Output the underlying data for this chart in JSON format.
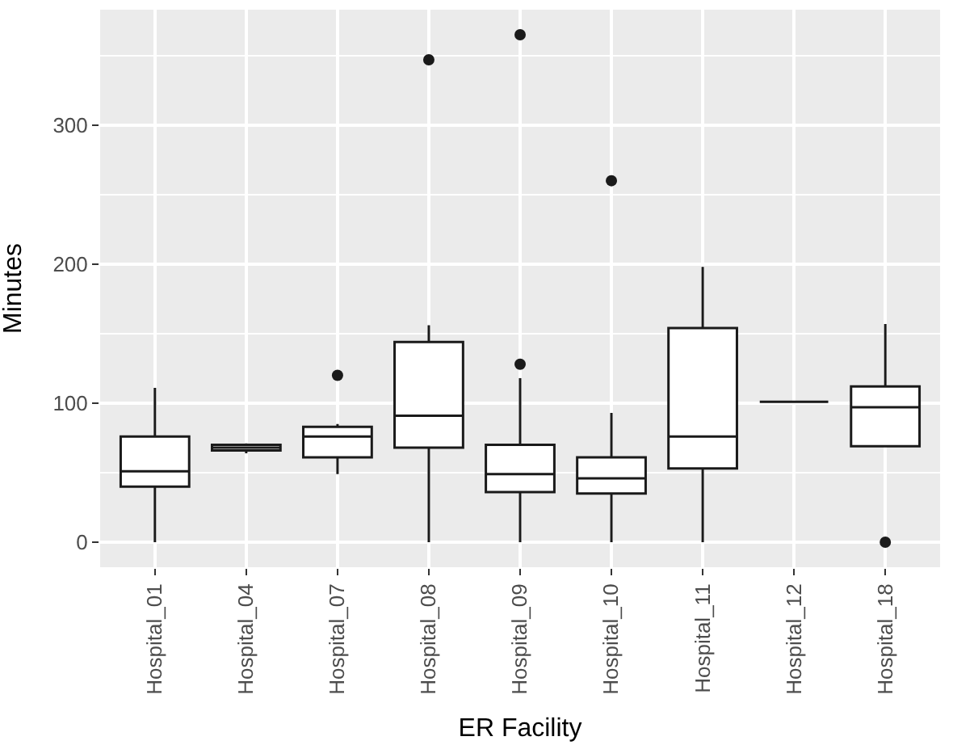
{
  "chart_data": {
    "type": "box",
    "xlabel": "ER Facility",
    "ylabel": "Minutes",
    "categories": [
      "Hospital_01",
      "Hospital_04",
      "Hospital_07",
      "Hospital_08",
      "Hospital_09",
      "Hospital_10",
      "Hospital_11",
      "Hospital_12",
      "Hospital_18"
    ],
    "boxes": [
      {
        "low": 0,
        "q1": 40,
        "median": 51,
        "q3": 76,
        "high": 111
      },
      {
        "low": 64,
        "q1": 66,
        "median": 68,
        "q3": 70,
        "high": 71
      },
      {
        "low": 49,
        "q1": 61,
        "median": 76,
        "q3": 83,
        "high": 85,
        "outliers": [
          120
        ]
      },
      {
        "low": 0,
        "q1": 68,
        "median": 91,
        "q3": 144,
        "high": 156,
        "outliers": [
          347
        ]
      },
      {
        "low": 0,
        "q1": 36,
        "median": 49,
        "q3": 70,
        "high": 118,
        "outliers": [
          128,
          365
        ]
      },
      {
        "low": 0,
        "q1": 35,
        "median": 46,
        "q3": 61,
        "high": 93,
        "outliers": [
          260
        ]
      },
      {
        "low": 0,
        "q1": 53,
        "median": 76,
        "q3": 154,
        "high": 198
      },
      {
        "low": 101,
        "q1": 101,
        "median": 101,
        "q3": 101,
        "high": 101
      },
      {
        "low": 69,
        "q1": 69,
        "median": 97,
        "q3": 112,
        "high": 157,
        "outliers": [
          0
        ]
      }
    ],
    "color": "#1a1a1a",
    "ylim": [
      -18,
      383
    ],
    "yticks": [
      0,
      100,
      200,
      300
    ],
    "grid": true
  }
}
